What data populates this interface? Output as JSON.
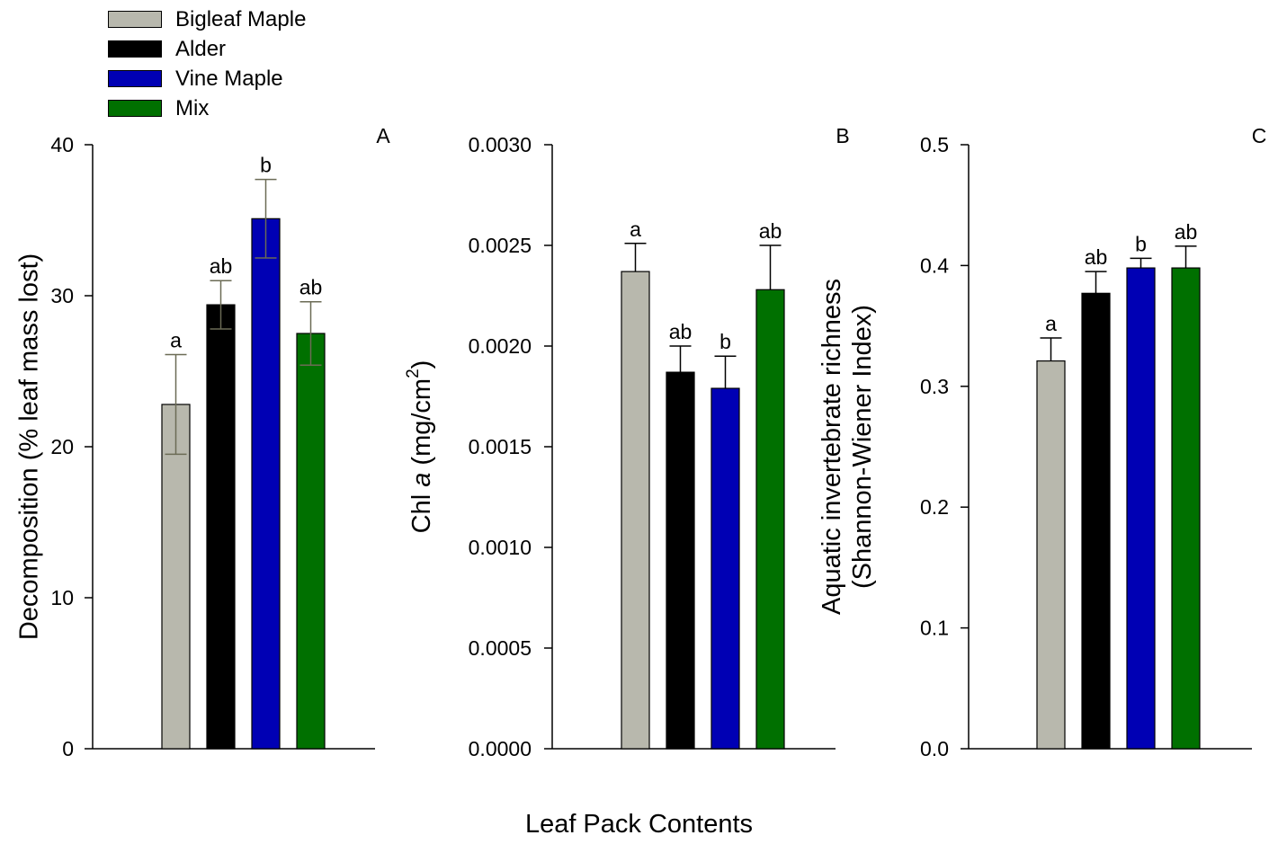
{
  "legend": {
    "items": [
      {
        "label": "Bigleaf Maple",
        "color": "#b8b8ad"
      },
      {
        "label": "Alder",
        "color": "#000000"
      },
      {
        "label": "Vine Maple",
        "color": "#0000b4"
      },
      {
        "label": "Mix",
        "color": "#007000"
      }
    ]
  },
  "figure": {
    "xlabel": "Leaf Pack Contents"
  },
  "chart_data": [
    {
      "type": "bar",
      "panel_label": "A",
      "ylabel": "Decomposition (% leaf mass lost)",
      "categories": [
        "Bigleaf Maple",
        "Alder",
        "Vine Maple",
        "Mix"
      ],
      "values": [
        22.8,
        29.4,
        35.1,
        27.5
      ],
      "errors": [
        3.3,
        1.6,
        2.6,
        2.1
      ],
      "letters": [
        "a",
        "ab",
        "b",
        "ab"
      ],
      "ylim": [
        0,
        40
      ],
      "yticks": [
        0,
        10,
        20,
        30,
        40
      ],
      "ytick_labels": [
        "0",
        "10",
        "20",
        "30",
        "40"
      ],
      "error_bar_color": "#6b6b55",
      "error_bar_style": "both"
    },
    {
      "type": "bar",
      "panel_label": "B",
      "ylabel": "Chl a (mg/cm2)",
      "ylabel_parts": [
        "Chl ",
        "a",
        " (mg/cm",
        "2",
        ")"
      ],
      "categories": [
        "Bigleaf Maple",
        "Alder",
        "Vine Maple",
        "Mix"
      ],
      "values": [
        0.00237,
        0.00187,
        0.00179,
        0.00228
      ],
      "errors": [
        0.00014,
        0.00013,
        0.00016,
        0.00022
      ],
      "letters": [
        "a",
        "ab",
        "b",
        "ab"
      ],
      "ylim": [
        0,
        0.003
      ],
      "yticks": [
        0,
        0.0005,
        0.001,
        0.0015,
        0.002,
        0.0025,
        0.003
      ],
      "ytick_labels": [
        "0.0000",
        "0.0005",
        "0.0010",
        "0.0015",
        "0.0020",
        "0.0025",
        "0.0030"
      ],
      "error_bar_color": "#000000",
      "error_bar_style": "upper"
    },
    {
      "type": "bar",
      "panel_label": "C",
      "ylabel": "Aquatic invertebrate richness (Shannon-Wiener Index)",
      "ylabel_lines": [
        "Aquatic invertebrate richness",
        "(Shannon-Wiener Index)"
      ],
      "categories": [
        "Bigleaf Maple",
        "Alder",
        "Vine Maple",
        "Mix"
      ],
      "values": [
        0.321,
        0.377,
        0.398,
        0.398
      ],
      "errors": [
        0.019,
        0.018,
        0.008,
        0.018
      ],
      "letters": [
        "a",
        "ab",
        "b",
        "ab"
      ],
      "ylim": [
        0,
        0.5
      ],
      "yticks": [
        0,
        0.1,
        0.2,
        0.3,
        0.4,
        0.5
      ],
      "ytick_labels": [
        "0.0",
        "0.1",
        "0.2",
        "0.3",
        "0.4",
        "0.5"
      ],
      "error_bar_color": "#000000",
      "error_bar_style": "upper"
    }
  ]
}
